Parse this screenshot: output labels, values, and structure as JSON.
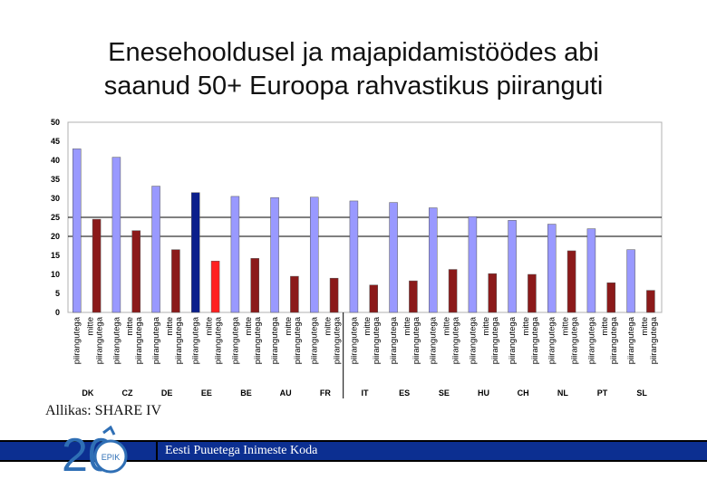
{
  "slide": {
    "title_line1": "Enesehooldusel ja majapidamistöödes abi",
    "title_line2": "saanud 50+ Euroopa rahvastikus piiranguti",
    "source": "Allikas: SHARE IV",
    "footer_text": "Eesti Puuetega Inimeste Koda",
    "logo_text": "EPIK",
    "logo_number": "20"
  },
  "colors": {
    "piirangutega": "#9999ff",
    "mitte_piirangutega": "#8b1a1a",
    "ee_piirangutega": "#0b1f8c",
    "ee_mitte_piirangutega": "#ff2020",
    "footer_bar": "#0c2f91",
    "logo_blue": "#2f6fb5"
  },
  "chart_data": {
    "type": "bar",
    "ylim": [
      0,
      50
    ],
    "yticks": [
      0,
      5,
      10,
      15,
      20,
      25,
      30,
      35,
      40,
      45,
      50
    ],
    "reference_lines": [
      20,
      25
    ],
    "bar_labels": [
      "piirangutega",
      "mitte piirangutega"
    ],
    "groups": [
      {
        "country": "DK",
        "values": [
          43,
          24.5
        ]
      },
      {
        "country": "CZ",
        "values": [
          40.8,
          21.5
        ]
      },
      {
        "country": "DE",
        "values": [
          33.2,
          16.5
        ]
      },
      {
        "country": "EE",
        "values": [
          31.5,
          13.5
        ]
      },
      {
        "country": "BE",
        "values": [
          30.5,
          14.2
        ]
      },
      {
        "country": "AU",
        "values": [
          30.2,
          9.5
        ]
      },
      {
        "country": "FR",
        "values": [
          30.3,
          9
        ]
      },
      {
        "country": "IT",
        "values": [
          29.3,
          7.2
        ]
      },
      {
        "country": "ES",
        "values": [
          28.9,
          8.3
        ]
      },
      {
        "country": "SE",
        "values": [
          27.5,
          11.3
        ]
      },
      {
        "country": "HU",
        "values": [
          25.2,
          10.2
        ]
      },
      {
        "country": "CH",
        "values": [
          24.2,
          10
        ]
      },
      {
        "country": "NL",
        "values": [
          23.2,
          16.2
        ]
      },
      {
        "country": "PT",
        "values": [
          22,
          7.8
        ]
      },
      {
        "country": "SL",
        "values": [
          16.5,
          5.8
        ]
      }
    ]
  }
}
